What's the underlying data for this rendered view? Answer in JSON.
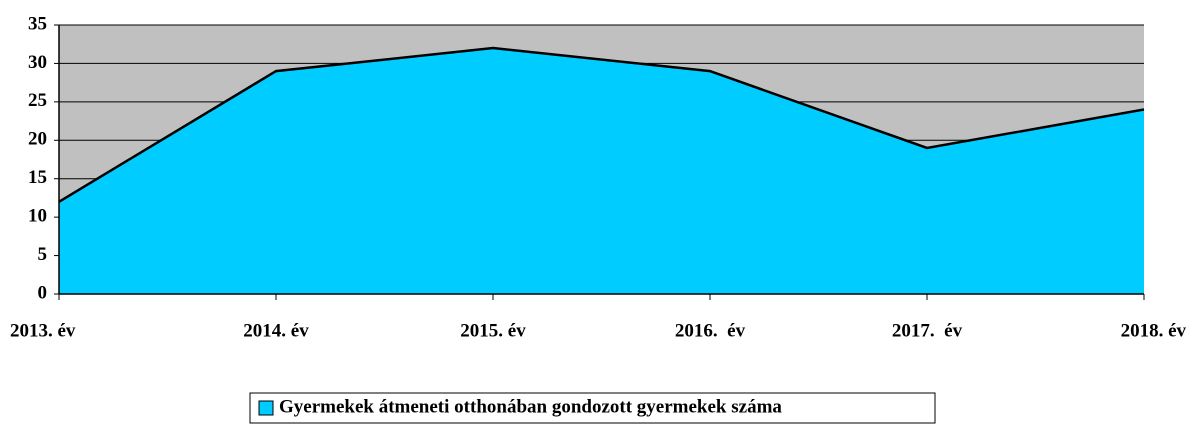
{
  "chart_data": {
    "type": "area",
    "categories": [
      "2013. év",
      "2014. év",
      "2015. év",
      "2016.  év",
      "2017.  év",
      "2018. év"
    ],
    "series": [
      {
        "name": "Gyermekek átmeneti otthonában gondozott gyermekek száma",
        "color": "#00ccff",
        "values": [
          12,
          29,
          32,
          29,
          19,
          24
        ]
      }
    ],
    "ylim": [
      0,
      35
    ],
    "yticks": [
      0,
      5,
      10,
      15,
      20,
      25,
      30,
      35
    ],
    "grid": true,
    "plot_background": "#c0c0c0",
    "legend": "bottom"
  }
}
